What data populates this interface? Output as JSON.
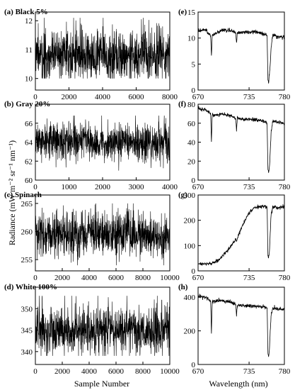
{
  "figure": {
    "ylabel": "Radiance (mW m⁻² sr⁻¹ nm⁻¹)",
    "xlabel_left": "Sample Number",
    "xlabel_right": "Wavelength (nm)"
  },
  "chart_data": [
    {
      "id": "a",
      "type": "line",
      "title": "(a) Black 5%",
      "xlabel": "Sample Number",
      "ylabel": "Radiance",
      "xlim": [
        0,
        8000
      ],
      "ylim": [
        9.6,
        12.3
      ],
      "xticks": [
        0,
        2000,
        4000,
        6000,
        8000
      ],
      "yticks": [
        10,
        11,
        12
      ],
      "xtick_labels": [
        "0",
        "2000",
        "4000",
        "6000",
        "8000"
      ],
      "ytick_labels": [
        "10",
        "11",
        "12"
      ],
      "series": [
        {
          "mean": 10.8,
          "amp": 0.45,
          "min": 10.0,
          "max": 12.1
        }
      ]
    },
    {
      "id": "b",
      "type": "line",
      "title": "(b) Gray 20%",
      "xlabel": "Sample Number",
      "ylabel": "Radiance",
      "xlim": [
        0,
        4000
      ],
      "ylim": [
        60,
        68
      ],
      "xticks": [
        0,
        1000,
        2000,
        3000,
        4000
      ],
      "yticks": [
        60,
        62,
        64,
        66
      ],
      "xtick_labels": [
        "0",
        "1000",
        "2000",
        "3000",
        "4000"
      ],
      "ytick_labels": [
        "60",
        "62",
        "64",
        "66"
      ],
      "series": [
        {
          "mean": 64.0,
          "amp": 1.0,
          "min": 61.0,
          "max": 66.8
        }
      ]
    },
    {
      "id": "c",
      "type": "line",
      "title": "(c) Spinach",
      "xlabel": "Sample Number",
      "ylabel": "Radiance",
      "xlim": [
        0,
        10000
      ],
      "ylim": [
        253,
        266.5
      ],
      "xticks": [
        0,
        2000,
        4000,
        6000,
        8000,
        10000
      ],
      "yticks": [
        255,
        260,
        265
      ],
      "xtick_labels": [
        "0",
        "2000",
        "4000",
        "6000",
        "8000",
        "10000"
      ],
      "ytick_labels": [
        "255",
        "260",
        "265"
      ],
      "series": [
        {
          "mean": 259.5,
          "amp": 2.2,
          "min": 254.0,
          "max": 265.0
        }
      ]
    },
    {
      "id": "d",
      "type": "line",
      "title": "(d) White 100%",
      "xlabel": "Sample Number",
      "ylabel": "Radiance",
      "xlim": [
        0,
        10000
      ],
      "ylim": [
        337,
        355
      ],
      "xticks": [
        0,
        2000,
        4000,
        6000,
        8000,
        10000
      ],
      "yticks": [
        340,
        345,
        350
      ],
      "xtick_labels": [
        "0",
        "2000",
        "4000",
        "6000",
        "8000",
        "10000"
      ],
      "ytick_labels": [
        "340",
        "345",
        "350"
      ],
      "series": [
        {
          "mean": 345.0,
          "amp": 2.8,
          "min": 339.0,
          "max": 353.0
        }
      ]
    },
    {
      "id": "e",
      "type": "line",
      "title": "(e)",
      "xlabel": "Wavelength (nm)",
      "ylabel": "Radiance",
      "xlim": [
        670,
        780
      ],
      "ylim": [
        0,
        15
      ],
      "xticks": [
        670,
        735,
        780
      ],
      "yticks": [
        0,
        5,
        10,
        15
      ],
      "xtick_labels": [
        "670",
        "735",
        "780"
      ],
      "ytick_labels": [
        "0",
        "5",
        "10",
        "15"
      ],
      "series": [
        {
          "x": [
            670,
            680,
            686,
            687,
            688,
            700,
            712,
            718,
            719,
            720,
            730,
            740,
            750,
            758,
            759,
            760,
            761,
            762,
            763,
            765,
            768,
            770,
            780
          ],
          "y": [
            11.5,
            11.5,
            10.5,
            6.5,
            10.5,
            11.5,
            11.5,
            11.0,
            8.8,
            11.0,
            11.2,
            11.2,
            11.0,
            10.5,
            2.0,
            1.5,
            3.0,
            5.0,
            8.0,
            10.5,
            10.6,
            10.2,
            10.2
          ]
        }
      ]
    },
    {
      "id": "f",
      "type": "line",
      "title": "(f)",
      "xlabel": "Wavelength (nm)",
      "ylabel": "Radiance",
      "xlim": [
        670,
        780
      ],
      "ylim": [
        0,
        80
      ],
      "xticks": [
        670,
        735,
        780
      ],
      "yticks": [
        0,
        20,
        40,
        60,
        80
      ],
      "xtick_labels": [
        "670",
        "735",
        "780"
      ],
      "ytick_labels": [
        "0",
        "20",
        "40",
        "60",
        "80"
      ],
      "series": [
        {
          "x": [
            670,
            680,
            686,
            687,
            688,
            700,
            712,
            718,
            719,
            720,
            730,
            740,
            750,
            758,
            759,
            760,
            761,
            762,
            763,
            765,
            768,
            770,
            780
          ],
          "y": [
            75,
            74,
            70,
            40,
            68,
            70,
            68,
            65,
            52,
            65,
            64,
            64,
            63,
            60,
            10,
            8,
            15,
            30,
            50,
            62,
            62,
            61,
            60
          ]
        }
      ]
    },
    {
      "id": "g",
      "type": "line",
      "title": "(g)",
      "xlabel": "Wavelength (nm)",
      "ylabel": "Radiance",
      "xlim": [
        670,
        780
      ],
      "ylim": [
        0,
        300
      ],
      "xticks": [
        670,
        735,
        780
      ],
      "yticks": [
        0,
        100,
        200,
        300
      ],
      "xtick_labels": [
        "670",
        "735",
        "780"
      ],
      "ytick_labels": [
        "0",
        "100",
        "200",
        "300"
      ],
      "series": [
        {
          "x": [
            670,
            680,
            686,
            687,
            688,
            695,
            700,
            710,
            718,
            719,
            720,
            725,
            730,
            735,
            740,
            745,
            750,
            755,
            758,
            759,
            760,
            761,
            762,
            763,
            765,
            768,
            770,
            780
          ],
          "y": [
            28,
            28,
            28,
            22,
            30,
            40,
            55,
            90,
            125,
            115,
            130,
            170,
            200,
            228,
            245,
            252,
            255,
            255,
            252,
            60,
            55,
            80,
            150,
            220,
            250,
            255,
            250,
            255
          ]
        }
      ]
    },
    {
      "id": "h",
      "type": "line",
      "title": "(h)",
      "xlabel": "Wavelength (nm)",
      "ylabel": "Radiance",
      "xlim": [
        670,
        780
      ],
      "ylim": [
        0,
        460
      ],
      "xticks": [
        670,
        735,
        780
      ],
      "yticks": [
        0,
        200,
        400
      ],
      "xtick_labels": [
        "670",
        "735",
        "780"
      ],
      "ytick_labels": [
        "0",
        "200",
        "400"
      ],
      "series": [
        {
          "x": [
            670,
            680,
            686,
            687,
            688,
            700,
            712,
            718,
            719,
            720,
            730,
            740,
            750,
            758,
            759,
            760,
            761,
            762,
            763,
            765,
            768,
            770,
            780
          ],
          "y": [
            405,
            400,
            380,
            180,
            375,
            380,
            370,
            355,
            290,
            355,
            350,
            350,
            345,
            335,
            60,
            45,
            90,
            200,
            290,
            330,
            335,
            330,
            330
          ]
        }
      ]
    }
  ]
}
